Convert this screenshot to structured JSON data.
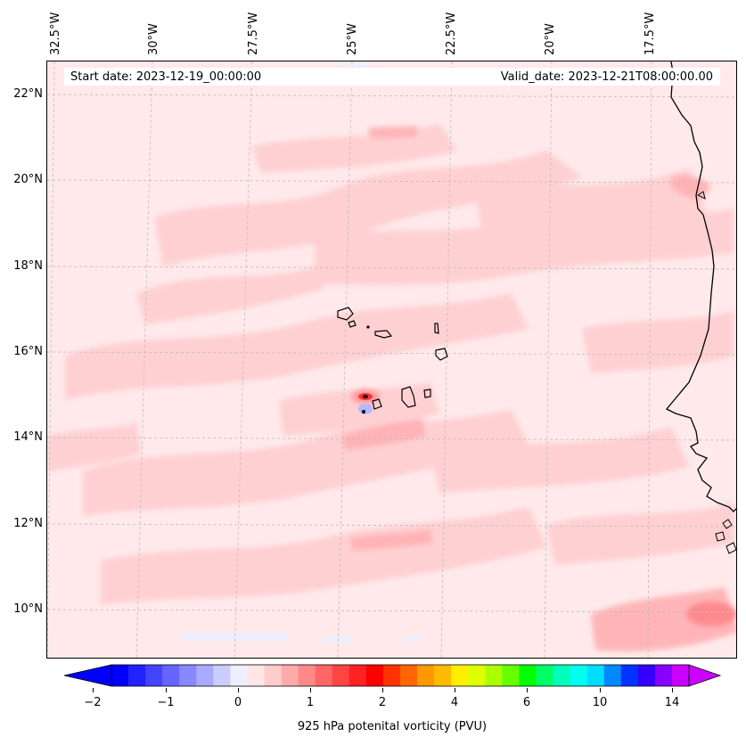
{
  "header": {
    "start_date": "Start date: 2023-12-19_00:00:00",
    "valid_date": "Valid_date: 2023-12-21T08:00:00.00"
  },
  "axes": {
    "longitudes": [
      "32.5°W",
      "30°W",
      "27.5°W",
      "25°W",
      "22.5°W",
      "20°W",
      "17.5°W"
    ],
    "latitudes": [
      "22°N",
      "20°N",
      "18°N",
      "16°N",
      "14°N",
      "12°N",
      "10°N"
    ],
    "gridlines": true
  },
  "colorbar": {
    "title": "925 hPa potenital vorticity (PVU)",
    "tick_labels": [
      "−2",
      "−1",
      "0",
      "1",
      "2",
      "4",
      "6",
      "10",
      "14"
    ],
    "colors": [
      "#0000ff",
      "#2222ff",
      "#4444ff",
      "#6666ff",
      "#8888ff",
      "#aaaaff",
      "#ccccff",
      "#eeeeff",
      "#ffe6e6",
      "#ffcccc",
      "#ffaaaa",
      "#ff8888",
      "#ff6666",
      "#ff4444",
      "#ff2222",
      "#ff0000",
      "#ff3300",
      "#ff6600",
      "#ff9900",
      "#ffbb00",
      "#ffee00",
      "#ddff00",
      "#aaff00",
      "#66ff00",
      "#00ff00",
      "#00ff66",
      "#00ffbb",
      "#00ffee",
      "#00ddff",
      "#0088ff",
      "#0033ff",
      "#3300ff",
      "#8800ff",
      "#cc00ff"
    ],
    "extend": "both"
  },
  "map": {
    "field": "925 hPa potential vorticity",
    "region_features": [
      "Cape Verde Islands",
      "West African coast"
    ]
  }
}
